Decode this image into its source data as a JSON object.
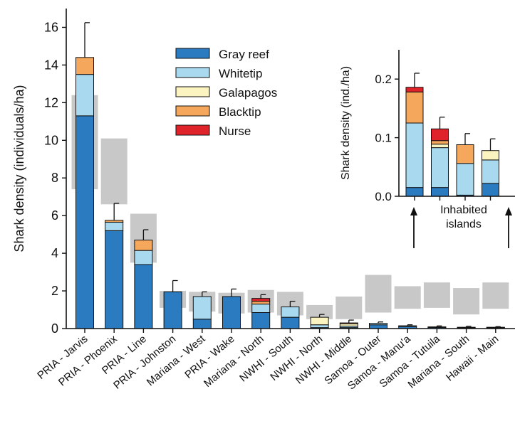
{
  "chart_data": [
    {
      "type": "bar",
      "stacked": true,
      "ylabel": "Shark density (individuals/ha)",
      "ylim": [
        0,
        17
      ],
      "yticks": [
        0,
        2,
        4,
        6,
        8,
        10,
        12,
        14,
        16
      ],
      "categories": [
        "PRIA - Jarvis",
        "PRIA - Phoenix",
        "PRIA - Line",
        "PRIA - Johnston",
        "Mariana - West",
        "PRIA - Wake",
        "Mariana - North",
        "NWHI - South",
        "NWHI - North",
        "NWHI - Middle",
        "Samoa - Outer",
        "Samoa - Manu'a",
        "Samoa - Tutuila",
        "Mariana - South",
        "Hawaii - Main"
      ],
      "series": [
        {
          "name": "Gray reef",
          "color": "#2a7bbf",
          "values": [
            11.3,
            5.2,
            3.4,
            1.95,
            0.5,
            1.7,
            0.85,
            0.6,
            0.05,
            0.05,
            0.2,
            0.1,
            0.06,
            0.05,
            0.04
          ]
        },
        {
          "name": "Whitetip",
          "color": "#a9d9ef",
          "values": [
            2.2,
            0.45,
            0.75,
            0.0,
            1.2,
            0.0,
            0.45,
            0.55,
            0.15,
            0.08,
            0.08,
            0.05,
            0.03,
            0.02,
            0.03
          ]
        },
        {
          "name": "Galapagos",
          "color": "#fbf4c1",
          "values": [
            0.0,
            0.0,
            0.0,
            0.0,
            0.0,
            0.0,
            0.0,
            0.0,
            0.4,
            0.12,
            0.0,
            0.0,
            0.0,
            0.0,
            0.0
          ]
        },
        {
          "name": "Blacktip",
          "color": "#f5a85c",
          "values": [
            0.9,
            0.1,
            0.55,
            0.0,
            0.0,
            0.0,
            0.15,
            0.0,
            0.0,
            0.05,
            0.0,
            0.0,
            0.0,
            0.0,
            0.0
          ]
        },
        {
          "name": "Nurse",
          "color": "#e0232b",
          "values": [
            0.0,
            0.0,
            0.0,
            0.0,
            0.0,
            0.0,
            0.15,
            0.0,
            0.0,
            0.0,
            0.0,
            0.0,
            0.0,
            0.0,
            0.0
          ]
        }
      ],
      "error_upper": [
        16.25,
        6.65,
        5.25,
        2.55,
        1.95,
        2.1,
        1.8,
        1.45,
        0.75,
        0.45,
        0.35,
        0.2,
        0.14,
        0.12,
        0.1
      ],
      "gray_bands": [
        [
          7.4,
          12.4
        ],
        [
          6.6,
          10.1
        ],
        [
          3.5,
          6.1
        ],
        [
          1.1,
          2.0
        ],
        [
          0.9,
          1.95
        ],
        [
          0.8,
          1.9
        ],
        [
          0.85,
          2.05
        ],
        [
          0.7,
          1.95
        ],
        [
          0.5,
          1.25
        ],
        [
          0.5,
          1.7
        ],
        [
          0.85,
          2.85
        ],
        [
          1.05,
          2.25
        ],
        [
          1.1,
          2.45
        ],
        [
          0.75,
          2.15
        ],
        [
          1.05,
          2.45
        ]
      ],
      "legend_placement": "top-center"
    },
    {
      "type": "bar",
      "stacked": true,
      "inset": true,
      "ylabel": "Shark density (ind./ha)",
      "ylim": [
        0,
        0.25
      ],
      "yticks": [
        0.0,
        0.1,
        0.2
      ],
      "ytick_labels": [
        "0.0",
        "0.1",
        "0.2"
      ],
      "series": [
        {
          "name": "Gray reef",
          "color": "#2a7bbf",
          "values": [
            0.015,
            0.015,
            0.002,
            0.022
          ]
        },
        {
          "name": "Whitetip",
          "color": "#a9d9ef",
          "values": [
            0.11,
            0.068,
            0.054,
            0.04
          ]
        },
        {
          "name": "Galapagos",
          "color": "#fbf4c1",
          "values": [
            0.0,
            0.006,
            0.0,
            0.016
          ]
        },
        {
          "name": "Blacktip",
          "color": "#f5a85c",
          "values": [
            0.053,
            0.006,
            0.032,
            0.0
          ]
        },
        {
          "name": "Nurse",
          "color": "#e0232b",
          "values": [
            0.008,
            0.02,
            0.0,
            0.0
          ]
        }
      ],
      "error_upper": [
        0.21,
        0.135,
        0.107,
        0.098
      ],
      "annotation": {
        "line1": "Inhabited",
        "line2": "islands"
      }
    }
  ]
}
